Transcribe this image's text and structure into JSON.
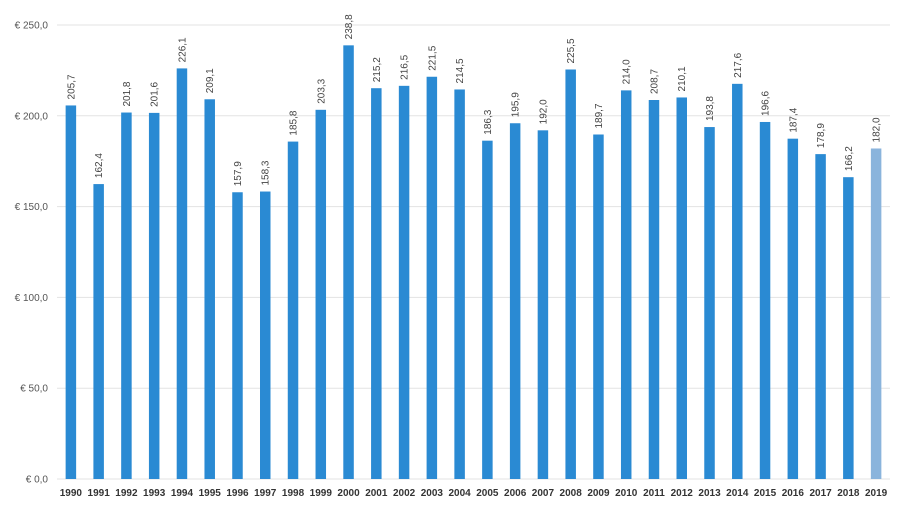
{
  "chart_data": {
    "type": "bar",
    "categories": [
      "1990",
      "1991",
      "1992",
      "1993",
      "1994",
      "1995",
      "1996",
      "1997",
      "1998",
      "1999",
      "2000",
      "2001",
      "2002",
      "2003",
      "2004",
      "2005",
      "2006",
      "2007",
      "2008",
      "2009",
      "2010",
      "2011",
      "2012",
      "2013",
      "2014",
      "2015",
      "2016",
      "2017",
      "2018",
      "2019"
    ],
    "values": [
      205.7,
      162.4,
      201.8,
      201.6,
      226.1,
      209.1,
      157.9,
      158.3,
      185.8,
      203.3,
      238.8,
      215.2,
      216.5,
      221.5,
      214.5,
      186.3,
      195.9,
      192.0,
      225.5,
      189.7,
      214.0,
      208.7,
      210.1,
      193.8,
      217.6,
      196.6,
      187.4,
      178.9,
      166.2,
      182.0
    ],
    "value_labels": [
      "205,7",
      "162,4",
      "201,8",
      "201,6",
      "226,1",
      "209,1",
      "157,9",
      "158,3",
      "185,8",
      "203,3",
      "238,8",
      "215,2",
      "216,5",
      "221,5",
      "214,5",
      "186,3",
      "195,9",
      "192,0",
      "225,5",
      "189,7",
      "214,0",
      "208,7",
      "210,1",
      "193,8",
      "217,6",
      "196,6",
      "187,4",
      "178,9",
      "166,2",
      "182,0"
    ],
    "y_ticks": [
      0,
      50,
      100,
      150,
      200,
      250
    ],
    "y_tick_labels": [
      "€ 0,0",
      "€ 50,0",
      "€ 100,0",
      "€ 150,0",
      "€ 200,0",
      "€ 250,0"
    ],
    "ylim": [
      0,
      250
    ],
    "title": "",
    "xlabel": "",
    "ylabel": "",
    "grid": true,
    "legend": "none",
    "colors": {
      "bar": "#2a8ad3",
      "highlight_bar": "#8ab4dc",
      "grid": "#e3e3e3"
    },
    "highlight_category": "2019"
  }
}
